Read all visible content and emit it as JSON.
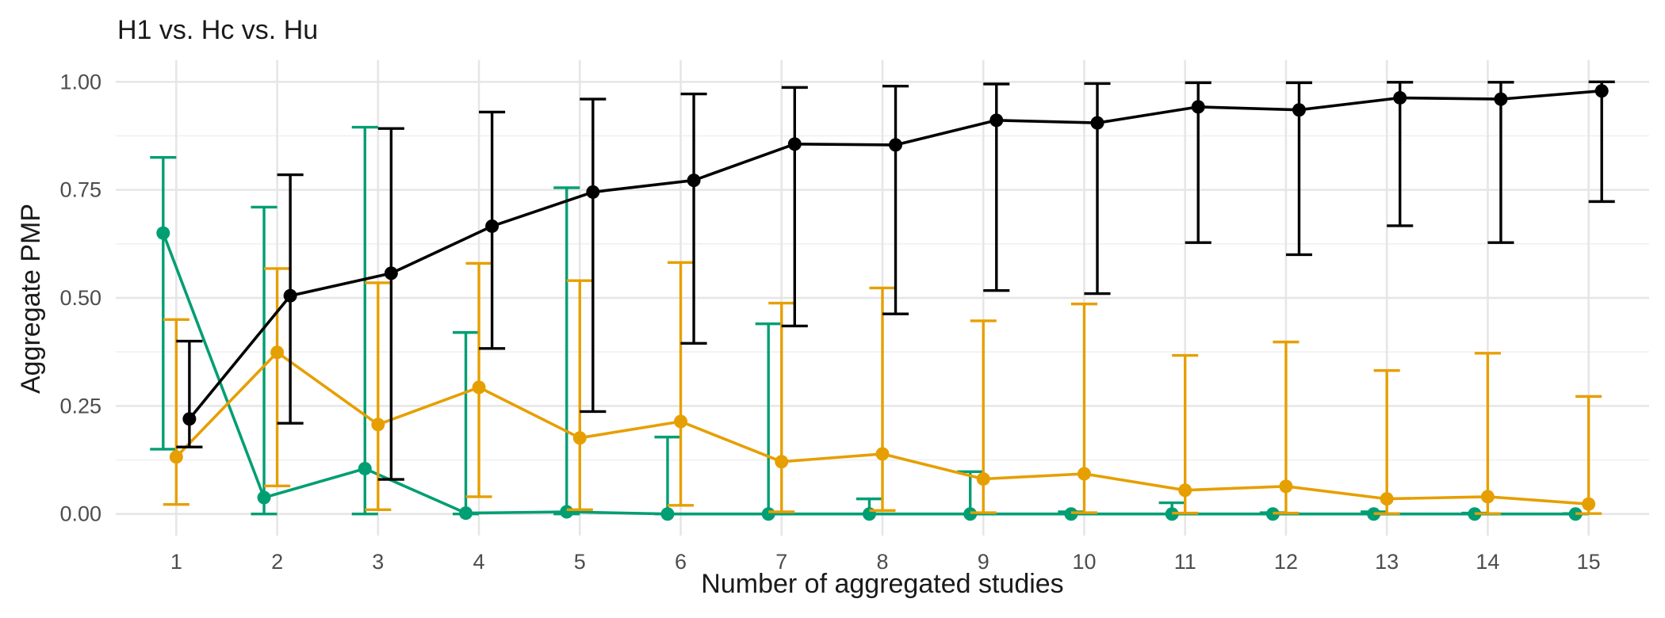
{
  "chart_data": {
    "type": "line",
    "title": "H1 vs. Hc vs. Hu",
    "xlabel": "Number of aggregated studies",
    "ylabel": "Aggregate PMP",
    "xlim": [
      0.4,
      15.6
    ],
    "ylim": [
      -0.05,
      1.05
    ],
    "x_ticks": [
      1,
      2,
      3,
      4,
      5,
      6,
      7,
      8,
      9,
      10,
      11,
      12,
      13,
      14,
      15
    ],
    "x_tick_labels": [
      "1",
      "2",
      "3",
      "4",
      "5",
      "6",
      "7",
      "8",
      "9",
      "10",
      "11",
      "12",
      "13",
      "14",
      "15"
    ],
    "y_ticks": [
      0,
      0.25,
      0.5,
      0.75,
      1.0
    ],
    "y_tick_labels": [
      "0.00",
      "0.25",
      "0.50",
      "0.75",
      "1.00"
    ],
    "grid": true,
    "legend": "none",
    "series": [
      {
        "color": "#009E73",
        "x_offset": -0.13,
        "x": [
          1,
          2,
          3,
          4,
          5,
          6,
          7,
          8,
          9,
          10,
          11,
          12,
          13,
          14,
          15
        ],
        "values": [
          0.65,
          0.038,
          0.105,
          0.002,
          0.005,
          0.0,
          0.0,
          0.0,
          0.0,
          0.0,
          0.0,
          0.0,
          0.0,
          0.0,
          0.0
        ],
        "lower": [
          0.15,
          0.0,
          0.0,
          0.0,
          0.0,
          0.0,
          0.0,
          0.0,
          0.0,
          0.0,
          0.0,
          0.0,
          0.0,
          0.0,
          0.0
        ],
        "upper": [
          0.825,
          0.71,
          0.895,
          0.42,
          0.755,
          0.178,
          0.44,
          0.035,
          0.098,
          0.005,
          0.026,
          0.003,
          0.005,
          0.002,
          0.001
        ]
      },
      {
        "color": "#E69F00",
        "x_offset": 0.0,
        "x": [
          1,
          2,
          3,
          4,
          5,
          6,
          7,
          8,
          9,
          10,
          11,
          12,
          13,
          14,
          15
        ],
        "values": [
          0.132,
          0.374,
          0.207,
          0.293,
          0.176,
          0.214,
          0.121,
          0.139,
          0.081,
          0.093,
          0.055,
          0.064,
          0.035,
          0.04,
          0.023
        ],
        "lower": [
          0.022,
          0.065,
          0.01,
          0.04,
          0.01,
          0.02,
          0.005,
          0.008,
          0.003,
          0.003,
          0.002,
          0.002,
          0.001,
          0.001,
          0.001
        ],
        "upper": [
          0.45,
          0.568,
          0.535,
          0.58,
          0.54,
          0.582,
          0.488,
          0.523,
          0.447,
          0.486,
          0.367,
          0.398,
          0.332,
          0.372,
          0.272
        ]
      },
      {
        "color": "#000000",
        "x_offset": 0.13,
        "x": [
          1,
          2,
          3,
          4,
          5,
          6,
          7,
          8,
          9,
          10,
          11,
          12,
          13,
          14,
          15
        ],
        "values": [
          0.22,
          0.505,
          0.557,
          0.666,
          0.745,
          0.772,
          0.856,
          0.854,
          0.911,
          0.905,
          0.942,
          0.935,
          0.963,
          0.96,
          0.979
        ],
        "lower": [
          0.155,
          0.21,
          0.08,
          0.383,
          0.237,
          0.395,
          0.435,
          0.463,
          0.517,
          0.51,
          0.628,
          0.6,
          0.667,
          0.628,
          0.723
        ],
        "upper": [
          0.4,
          0.785,
          0.892,
          0.93,
          0.96,
          0.972,
          0.987,
          0.99,
          0.995,
          0.996,
          0.998,
          0.998,
          0.999,
          0.999,
          1.0
        ]
      }
    ]
  }
}
